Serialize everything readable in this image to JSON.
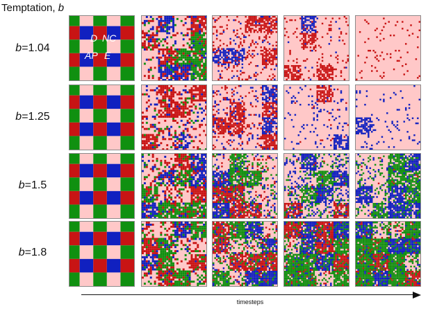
{
  "title": {
    "text": "Temptation, ",
    "symbol": "b"
  },
  "rows": [
    {
      "symbol": "b",
      "value": "=1.04"
    },
    {
      "symbol": "b",
      "value": "=1.25"
    },
    {
      "symbol": "b",
      "value": "=1.5"
    },
    {
      "symbol": "b",
      "value": "=1.8"
    }
  ],
  "legend": {
    "D": "D",
    "NC": "NC",
    "AP": "AP",
    "E": "E"
  },
  "x_axis_label": "timesteps",
  "colors": {
    "D": "#1020c0",
    "NC": "#c81414",
    "AP": "#ffc8c8",
    "E": "#109010"
  },
  "strategy_mix": [
    [
      {
        "AP": 0.25,
        "NC": 0.25,
        "D": 0.25,
        "E": 0.25
      },
      {
        "AP": 0.42,
        "NC": 0.28,
        "D": 0.18,
        "E": 0.12
      },
      {
        "AP": 0.62,
        "NC": 0.3,
        "D": 0.08,
        "E": 0.0
      },
      {
        "AP": 0.76,
        "NC": 0.2,
        "D": 0.04,
        "E": 0.0
      },
      {
        "AP": 0.88,
        "NC": 0.12,
        "D": 0.0,
        "E": 0.0
      }
    ],
    [
      {
        "AP": 0.25,
        "NC": 0.25,
        "D": 0.25,
        "E": 0.25
      },
      {
        "AP": 0.45,
        "NC": 0.35,
        "D": 0.12,
        "E": 0.08
      },
      {
        "AP": 0.6,
        "NC": 0.2,
        "D": 0.2,
        "E": 0.0
      },
      {
        "AP": 0.82,
        "NC": 0.03,
        "D": 0.15,
        "E": 0.0
      },
      {
        "AP": 0.85,
        "NC": 0.0,
        "D": 0.15,
        "E": 0.0
      }
    ],
    [
      {
        "AP": 0.25,
        "NC": 0.25,
        "D": 0.25,
        "E": 0.25
      },
      {
        "AP": 0.4,
        "NC": 0.3,
        "D": 0.12,
        "E": 0.18
      },
      {
        "AP": 0.4,
        "NC": 0.15,
        "D": 0.2,
        "E": 0.25
      },
      {
        "AP": 0.4,
        "NC": 0.05,
        "D": 0.3,
        "E": 0.25
      },
      {
        "AP": 0.45,
        "NC": 0.02,
        "D": 0.28,
        "E": 0.25
      }
    ],
    [
      {
        "AP": 0.25,
        "NC": 0.25,
        "D": 0.25,
        "E": 0.25
      },
      {
        "AP": 0.38,
        "NC": 0.3,
        "D": 0.08,
        "E": 0.24
      },
      {
        "AP": 0.3,
        "NC": 0.2,
        "D": 0.15,
        "E": 0.35
      },
      {
        "AP": 0.22,
        "NC": 0.15,
        "D": 0.2,
        "E": 0.43
      },
      {
        "AP": 0.1,
        "NC": 0.18,
        "D": 0.12,
        "E": 0.6
      }
    ]
  ]
}
